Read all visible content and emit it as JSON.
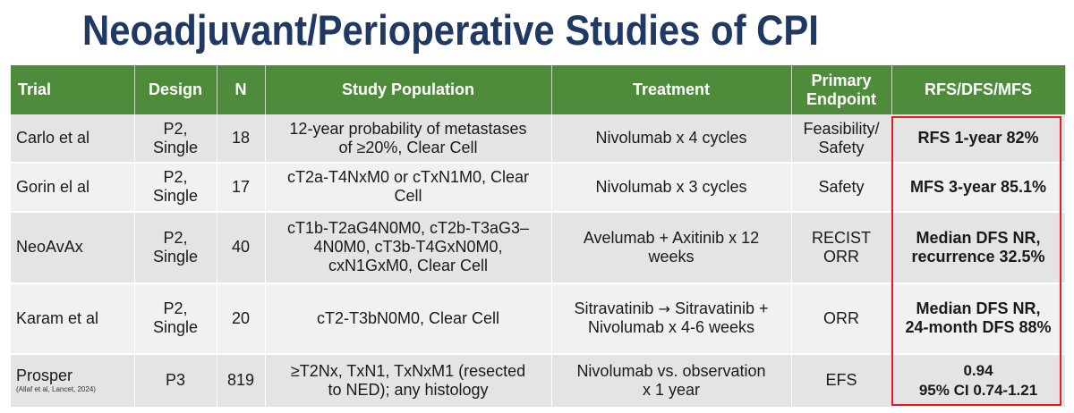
{
  "title": "Neoadjuvant/Perioperative Studies of CPI",
  "table": {
    "headers": {
      "trial": "Trial",
      "design": "Design",
      "n": "N",
      "population": "Study Population",
      "treatment": "Treatment",
      "endpoint_line1": "Primary",
      "endpoint_line2": "Endpoint",
      "result": "RFS/DFS/MFS"
    },
    "rows": [
      {
        "trial": "Carlo et al",
        "design_line1": "P2,",
        "design_line2": "Single",
        "n": "18",
        "population_line1": "12-year probability of metastases",
        "population_line2": "of ≥20%, Clear Cell",
        "treatment_line1": "Nivolumab x 4 cycles",
        "endpoint_line1": "Feasibility/",
        "endpoint_line2": "Safety",
        "result_line1": "RFS 1-year 82%"
      },
      {
        "trial": "Gorin el al",
        "design_line1": "P2,",
        "design_line2": "Single",
        "n": "17",
        "population_line1": "cT2a-T4NxM0 or cTxN1M0, Clear",
        "population_line2": "Cell",
        "treatment_line1": "Nivolumab x 3 cycles",
        "endpoint_line1": "Safety",
        "result_line1": "MFS 3-year 85.1%"
      },
      {
        "trial": "NeoAvAx",
        "design_line1": "P2,",
        "design_line2": "Single",
        "n": "40",
        "population_line1": "cT1b-T2aG4N0M0, cT2b-T3aG3–",
        "population_line2": "4N0M0, cT3b-T4GxN0M0,",
        "population_line3": "cxN1GxM0, Clear Cell",
        "treatment_line1": "Avelumab + Axitinib x 12",
        "treatment_line2": "weeks",
        "endpoint_line1": "RECIST",
        "endpoint_line2": "ORR",
        "result_line1": "Median DFS NR,",
        "result_line2": "recurrence 32.5%"
      },
      {
        "trial": "Karam et al",
        "design_line1": "P2,",
        "design_line2": "Single",
        "n": "20",
        "population_line1": "cT2-T3bN0M0, Clear Cell",
        "treatment_part1": "Sitravatinib ",
        "treatment_arrow": "→",
        "treatment_part2": " Sitravatinib +",
        "treatment_line2": "Nivolumab x 4-6 weeks",
        "endpoint_line1": "ORR",
        "result_line1": "Median DFS NR,",
        "result_line2": "24-month DFS 88%"
      },
      {
        "trial": "Prosper",
        "trial_sub": "(Allaf et al, Lancet, 2024)",
        "design_line1": "P3",
        "n": "819",
        "population_line1": "≥T2Nx, TxN1, TxNxM1 (resected",
        "population_line2": "to NED); any histology",
        "treatment_line1": "Nivolumab vs. observation",
        "treatment_line2": "x 1 year",
        "endpoint_line1": "EFS",
        "result_line1": "0.94",
        "result_line2": "95% CI 0.74-1.21"
      }
    ]
  },
  "colors": {
    "title": "#1f3864",
    "header_bg": "#4e8b3a",
    "row_odd": "#e4e4e4",
    "row_even": "#f1f1f1",
    "highlight_border": "#e02020"
  }
}
